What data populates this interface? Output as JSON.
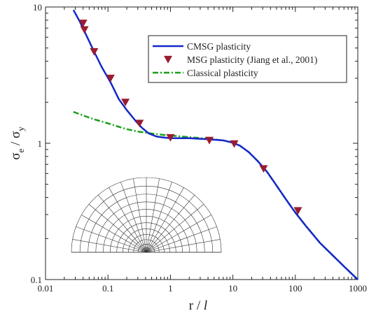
{
  "chart_data": {
    "type": "line",
    "xscale": "log",
    "yscale": "log",
    "xlim": [
      0.01,
      1000
    ],
    "ylim": [
      0.1,
      10
    ],
    "x_ticks": [
      {
        "value": 0.01,
        "label": "0.01"
      },
      {
        "value": 0.1,
        "label": "0.1"
      },
      {
        "value": 1,
        "label": "1"
      },
      {
        "value": 10,
        "label": "10"
      },
      {
        "value": 100,
        "label": "100"
      },
      {
        "value": 1000,
        "label": "1000"
      }
    ],
    "y_ticks": [
      {
        "value": 0.1,
        "label": "0.1"
      },
      {
        "value": 1,
        "label": "1"
      },
      {
        "value": 10,
        "label": "10"
      }
    ],
    "xlabel": {
      "main": "r / ",
      "italic": "l"
    },
    "ylabel": {
      "sigma1": "σ",
      "sub1": "e",
      "mid": " / ",
      "sigma2": "σ",
      "sub2": "y"
    },
    "legend_position": "top-right",
    "series": [
      {
        "name": "CMSG plasticity",
        "kind": "line",
        "color": "#1428c8",
        "points": [
          [
            0.028,
            9.5
          ],
          [
            0.035,
            7.9
          ],
          [
            0.045,
            6.2
          ],
          [
            0.06,
            4.7
          ],
          [
            0.08,
            3.6
          ],
          [
            0.11,
            2.8
          ],
          [
            0.15,
            2.1
          ],
          [
            0.2,
            1.75
          ],
          [
            0.28,
            1.45
          ],
          [
            0.35,
            1.3
          ],
          [
            0.45,
            1.18
          ],
          [
            0.6,
            1.12
          ],
          [
            0.8,
            1.1
          ],
          [
            1.0,
            1.09
          ],
          [
            2.0,
            1.09
          ],
          [
            4.0,
            1.07
          ],
          [
            7.0,
            1.05
          ],
          [
            10.0,
            1.01
          ],
          [
            13.0,
            0.96
          ],
          [
            18.0,
            0.86
          ],
          [
            25.0,
            0.74
          ],
          [
            35.0,
            0.62
          ],
          [
            50.0,
            0.49
          ],
          [
            70.0,
            0.39
          ],
          [
            100.0,
            0.31
          ],
          [
            150.0,
            0.245
          ],
          [
            250.0,
            0.185
          ],
          [
            400.0,
            0.15
          ],
          [
            600.0,
            0.125
          ],
          [
            1000.0,
            0.1
          ]
        ]
      },
      {
        "name": "MSG plasticity (Jiang et al., 2001)",
        "kind": "marker",
        "color": "#991c30",
        "points": [
          [
            0.04,
            7.6
          ],
          [
            0.042,
            6.8
          ],
          [
            0.06,
            4.7
          ],
          [
            0.11,
            3.0
          ],
          [
            0.19,
            2.0
          ],
          [
            0.32,
            1.4
          ],
          [
            1.0,
            1.1
          ],
          [
            4.2,
            1.05
          ],
          [
            10.5,
            0.99
          ],
          [
            31.0,
            0.65
          ],
          [
            110.0,
            0.32
          ]
        ]
      },
      {
        "name": "Classical plasticity",
        "kind": "dashdot",
        "color": "#1aa01a",
        "points": [
          [
            0.028,
            1.7
          ],
          [
            0.04,
            1.6
          ],
          [
            0.06,
            1.5
          ],
          [
            0.1,
            1.4
          ],
          [
            0.15,
            1.32
          ],
          [
            0.2,
            1.27
          ],
          [
            0.3,
            1.22
          ],
          [
            0.5,
            1.18
          ],
          [
            0.8,
            1.15
          ],
          [
            1.0,
            1.14
          ],
          [
            2.0,
            1.11
          ],
          [
            4.0,
            1.08
          ],
          [
            7.0,
            1.05
          ],
          [
            10.0,
            1.01
          ],
          [
            13.0,
            0.96
          ],
          [
            18.0,
            0.86
          ],
          [
            25.0,
            0.74
          ],
          [
            35.0,
            0.62
          ],
          [
            50.0,
            0.49
          ],
          [
            70.0,
            0.39
          ],
          [
            100.0,
            0.31
          ],
          [
            150.0,
            0.245
          ],
          [
            250.0,
            0.185
          ],
          [
            400.0,
            0.15
          ],
          [
            600.0,
            0.125
          ],
          [
            1000.0,
            0.1
          ]
        ]
      }
    ],
    "inset": {
      "description_icon": "semicircular-mesh-icon",
      "rings": 13,
      "spokes": 18
    }
  }
}
